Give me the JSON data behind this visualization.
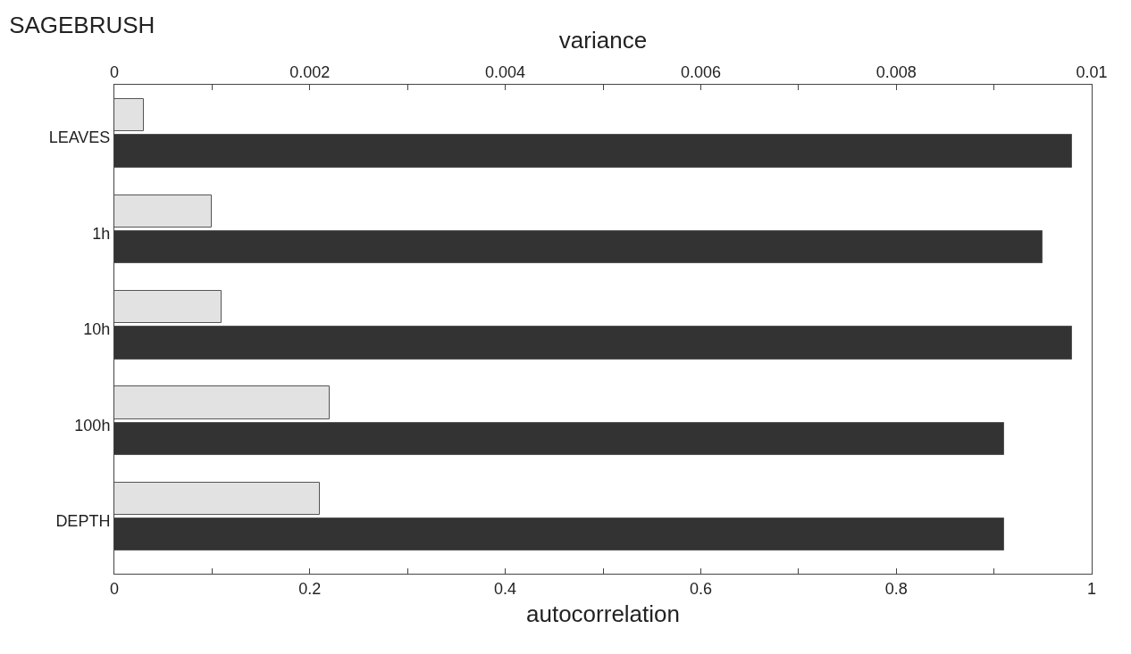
{
  "chart_data": {
    "type": "bar",
    "orientation": "horizontal",
    "title": "SAGEBRUSH",
    "xlabel": "autocorrelation",
    "x2label": "variance",
    "categories": [
      "LEAVES",
      "1h",
      "10h",
      "100h",
      "DEPTH"
    ],
    "series": [
      {
        "color": "#e2e2e2",
        "axis": "x2",
        "values": [
          0.0003,
          0.001,
          0.0011,
          0.0022,
          0.0021
        ]
      },
      {
        "color": "#333333",
        "values": [
          0.98,
          0.95,
          0.98,
          0.91,
          0.91
        ]
      }
    ],
    "xlim": [
      0,
      1
    ],
    "xticks": [
      0,
      {
        "value": 0.1,
        "label": null
      },
      0.2,
      {
        "value": 0.3,
        "label": null
      },
      0.4,
      {
        "value": 0.5,
        "label": null
      },
      0.6,
      {
        "value": 0.7,
        "label": null
      },
      0.8,
      {
        "value": 0.9,
        "label": null
      },
      1
    ],
    "x2lim": [
      0,
      0.01
    ],
    "x2ticks": [
      0,
      {
        "value": 0.001,
        "label": null
      },
      0.002,
      {
        "value": 0.003,
        "label": null
      },
      0.004,
      {
        "value": 0.005,
        "label": null
      },
      0.006,
      {
        "value": 0.007,
        "label": null
      },
      0.008,
      {
        "value": 0.009,
        "label": null
      },
      0.01
    ],
    "grid": false
  }
}
